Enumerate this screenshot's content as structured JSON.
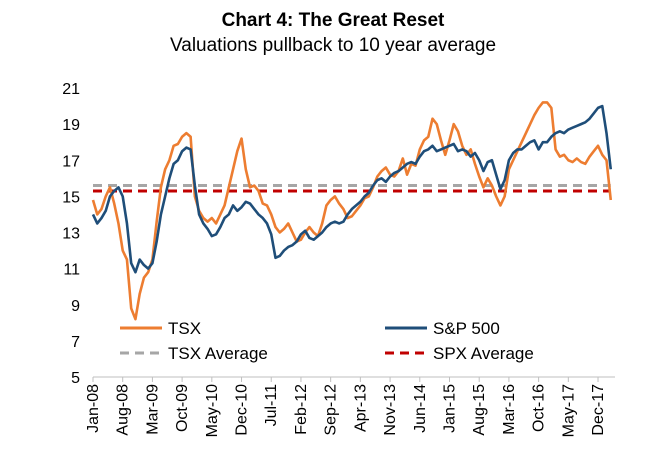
{
  "chart_data": {
    "type": "line",
    "title": "Chart 4: The Great Reset",
    "subtitle": "Valuations pullback to 10 year average",
    "xlabel": "",
    "ylabel": "",
    "ylim": [
      5,
      21
    ],
    "yticks": [
      5,
      7,
      9,
      11,
      13,
      15,
      17,
      19,
      21
    ],
    "xlim": [
      "2008-01",
      "2018-04"
    ],
    "xticks": [
      "Jan-08",
      "Aug-08",
      "Mar-09",
      "Oct-09",
      "May-10",
      "Dec-10",
      "Jul-11",
      "Feb-12",
      "Sep-12",
      "Apr-13",
      "Nov-13",
      "Jun-14",
      "Jan-15",
      "Aug-15",
      "Mar-16",
      "Oct-16",
      "May-17",
      "Dec-17"
    ],
    "grid": false,
    "legend_position": "bottom-inside",
    "colors": {
      "tsx": "#ED7D31",
      "sp500": "#1F4E79",
      "tsx_average": "#A6A6A6",
      "spx_average": "#C00000"
    },
    "series": [
      {
        "name": "TSX",
        "x": [
          "2008-01",
          "2008-02",
          "2008-03",
          "2008-04",
          "2008-05",
          "2008-06",
          "2008-07",
          "2008-08",
          "2008-09",
          "2008-10",
          "2008-11",
          "2008-12",
          "2009-01",
          "2009-02",
          "2009-03",
          "2009-04",
          "2009-05",
          "2009-06",
          "2009-07",
          "2009-08",
          "2009-09",
          "2009-10",
          "2009-11",
          "2009-12",
          "2010-01",
          "2010-02",
          "2010-03",
          "2010-04",
          "2010-05",
          "2010-06",
          "2010-07",
          "2010-08",
          "2010-09",
          "2010-10",
          "2010-11",
          "2010-12",
          "2011-01",
          "2011-02",
          "2011-03",
          "2011-04",
          "2011-05",
          "2011-06",
          "2011-07",
          "2011-08",
          "2011-09",
          "2011-10",
          "2011-11",
          "2011-12",
          "2012-01",
          "2012-02",
          "2012-03",
          "2012-04",
          "2012-05",
          "2012-06",
          "2012-07",
          "2012-08",
          "2012-09",
          "2012-10",
          "2012-11",
          "2012-12",
          "2013-01",
          "2013-02",
          "2013-03",
          "2013-04",
          "2013-05",
          "2013-06",
          "2013-07",
          "2013-08",
          "2013-09",
          "2013-10",
          "2013-11",
          "2013-12",
          "2014-01",
          "2014-02",
          "2014-03",
          "2014-04",
          "2014-05",
          "2014-06",
          "2014-07",
          "2014-08",
          "2014-09",
          "2014-10",
          "2014-11",
          "2014-12",
          "2015-01",
          "2015-02",
          "2015-03",
          "2015-04",
          "2015-05",
          "2015-06",
          "2015-07",
          "2015-08",
          "2015-09",
          "2015-10",
          "2015-11",
          "2015-12",
          "2016-01",
          "2016-02",
          "2016-03",
          "2016-04",
          "2016-05",
          "2016-06",
          "2016-07",
          "2016-08",
          "2016-09",
          "2016-10",
          "2016-11",
          "2016-12",
          "2017-01",
          "2017-02",
          "2017-03",
          "2017-04",
          "2017-05",
          "2017-06",
          "2017-07",
          "2017-08",
          "2017-09",
          "2017-10",
          "2017-11",
          "2017-12",
          "2018-01",
          "2018-02",
          "2018-03"
        ],
        "values": [
          14.8,
          14.0,
          14.3,
          15.0,
          15.5,
          14.6,
          13.5,
          12.0,
          11.5,
          8.8,
          8.2,
          9.6,
          10.5,
          10.8,
          11.5,
          13.6,
          15.5,
          16.5,
          17.0,
          17.8,
          17.9,
          18.3,
          18.5,
          18.3,
          15.0,
          14.2,
          13.8,
          13.6,
          13.8,
          13.5,
          14.0,
          14.5,
          15.5,
          16.5,
          17.5,
          18.2,
          16.5,
          15.5,
          15.6,
          15.3,
          14.6,
          14.5,
          14.0,
          13.3,
          13.0,
          13.2,
          13.5,
          13.0,
          12.5,
          12.6,
          13.0,
          13.3,
          13.0,
          12.8,
          13.5,
          14.5,
          14.8,
          15.0,
          14.6,
          14.3,
          13.8,
          13.9,
          14.2,
          14.5,
          14.9,
          15.0,
          15.5,
          16.1,
          16.4,
          16.6,
          16.2,
          16.1,
          16.4,
          17.1,
          16.2,
          16.8,
          16.7,
          17.6,
          18.1,
          18.3,
          19.3,
          19.0,
          18.1,
          17.3,
          18.1,
          19.0,
          18.6,
          17.8,
          17.3,
          17.6,
          16.8,
          16.1,
          15.5,
          16.0,
          15.6,
          15.0,
          14.5,
          15.0,
          16.5,
          17.0,
          17.5,
          18.0,
          18.5,
          19.0,
          19.5,
          19.9,
          20.2,
          20.2,
          19.9,
          17.6,
          17.2,
          17.3,
          17.0,
          16.9,
          17.1,
          16.9,
          16.8,
          17.2,
          17.5,
          17.8,
          17.3,
          17.0,
          14.8
        ]
      },
      {
        "name": "S&P 500",
        "x": [
          "2008-01",
          "2008-02",
          "2008-03",
          "2008-04",
          "2008-05",
          "2008-06",
          "2008-07",
          "2008-08",
          "2008-09",
          "2008-10",
          "2008-11",
          "2008-12",
          "2009-01",
          "2009-02",
          "2009-03",
          "2009-04",
          "2009-05",
          "2009-06",
          "2009-07",
          "2009-08",
          "2009-09",
          "2009-10",
          "2009-11",
          "2009-12",
          "2010-01",
          "2010-02",
          "2010-03",
          "2010-04",
          "2010-05",
          "2010-06",
          "2010-07",
          "2010-08",
          "2010-09",
          "2010-10",
          "2010-11",
          "2010-12",
          "2011-01",
          "2011-02",
          "2011-03",
          "2011-04",
          "2011-05",
          "2011-06",
          "2011-07",
          "2011-08",
          "2011-09",
          "2011-10",
          "2011-11",
          "2011-12",
          "2012-01",
          "2012-02",
          "2012-03",
          "2012-04",
          "2012-05",
          "2012-06",
          "2012-07",
          "2012-08",
          "2012-09",
          "2012-10",
          "2012-11",
          "2012-12",
          "2013-01",
          "2013-02",
          "2013-03",
          "2013-04",
          "2013-05",
          "2013-06",
          "2013-07",
          "2013-08",
          "2013-09",
          "2013-10",
          "2013-11",
          "2013-12",
          "2014-01",
          "2014-02",
          "2014-03",
          "2014-04",
          "2014-05",
          "2014-06",
          "2014-07",
          "2014-08",
          "2014-09",
          "2014-10",
          "2014-11",
          "2014-12",
          "2015-01",
          "2015-02",
          "2015-03",
          "2015-04",
          "2015-05",
          "2015-06",
          "2015-07",
          "2015-08",
          "2015-09",
          "2015-10",
          "2015-11",
          "2015-12",
          "2016-01",
          "2016-02",
          "2016-03",
          "2016-04",
          "2016-05",
          "2016-06",
          "2016-07",
          "2016-08",
          "2016-09",
          "2016-10",
          "2016-11",
          "2016-12",
          "2017-01",
          "2017-02",
          "2017-03",
          "2017-04",
          "2017-05",
          "2017-06",
          "2017-07",
          "2017-08",
          "2017-09",
          "2017-10",
          "2017-11",
          "2017-12",
          "2018-01",
          "2018-02",
          "2018-03"
        ],
        "values": [
          14.0,
          13.5,
          13.8,
          14.2,
          15.0,
          15.3,
          15.5,
          15.0,
          13.5,
          11.3,
          10.8,
          11.5,
          11.2,
          11.0,
          11.3,
          12.5,
          14.0,
          15.0,
          16.0,
          16.8,
          17.0,
          17.5,
          17.7,
          17.6,
          15.6,
          14.0,
          13.5,
          13.2,
          12.8,
          12.9,
          13.3,
          13.8,
          14.0,
          14.5,
          14.2,
          14.4,
          14.7,
          14.6,
          14.3,
          14.0,
          13.8,
          13.5,
          12.9,
          11.6,
          11.7,
          12.0,
          12.2,
          12.3,
          12.5,
          12.9,
          13.1,
          12.7,
          12.6,
          12.8,
          13.0,
          13.3,
          13.5,
          13.6,
          13.5,
          13.6,
          14.0,
          14.3,
          14.5,
          14.7,
          15.0,
          15.2,
          15.6,
          15.9,
          16.0,
          15.8,
          16.1,
          16.3,
          16.4,
          16.6,
          16.8,
          16.9,
          16.8,
          17.2,
          17.5,
          17.6,
          17.8,
          17.5,
          17.6,
          17.7,
          17.8,
          17.9,
          17.5,
          17.6,
          17.5,
          17.2,
          17.4,
          17.0,
          16.4,
          16.9,
          17.0,
          16.2,
          15.4,
          15.9,
          17.0,
          17.4,
          17.6,
          17.6,
          17.8,
          18.0,
          18.1,
          17.6,
          18.0,
          18.0,
          18.3,
          18.5,
          18.6,
          18.5,
          18.7,
          18.8,
          18.9,
          19.0,
          19.1,
          19.3,
          19.6,
          19.9,
          20.0,
          18.5,
          16.5
        ]
      },
      {
        "name": "TSX Average",
        "x": [
          "2008-01",
          "2018-03"
        ],
        "values": [
          15.6,
          15.6
        ]
      },
      {
        "name": "SPX Average",
        "x": [
          "2008-01",
          "2018-03"
        ],
        "values": [
          15.3,
          15.3
        ]
      }
    ],
    "legend": [
      {
        "label": "TSX",
        "series": "TSX"
      },
      {
        "label": "S&P 500",
        "series": "S&P 500"
      },
      {
        "label": "TSX Average",
        "series": "TSX Average"
      },
      {
        "label": "SPX Average",
        "series": "SPX Average"
      }
    ]
  }
}
